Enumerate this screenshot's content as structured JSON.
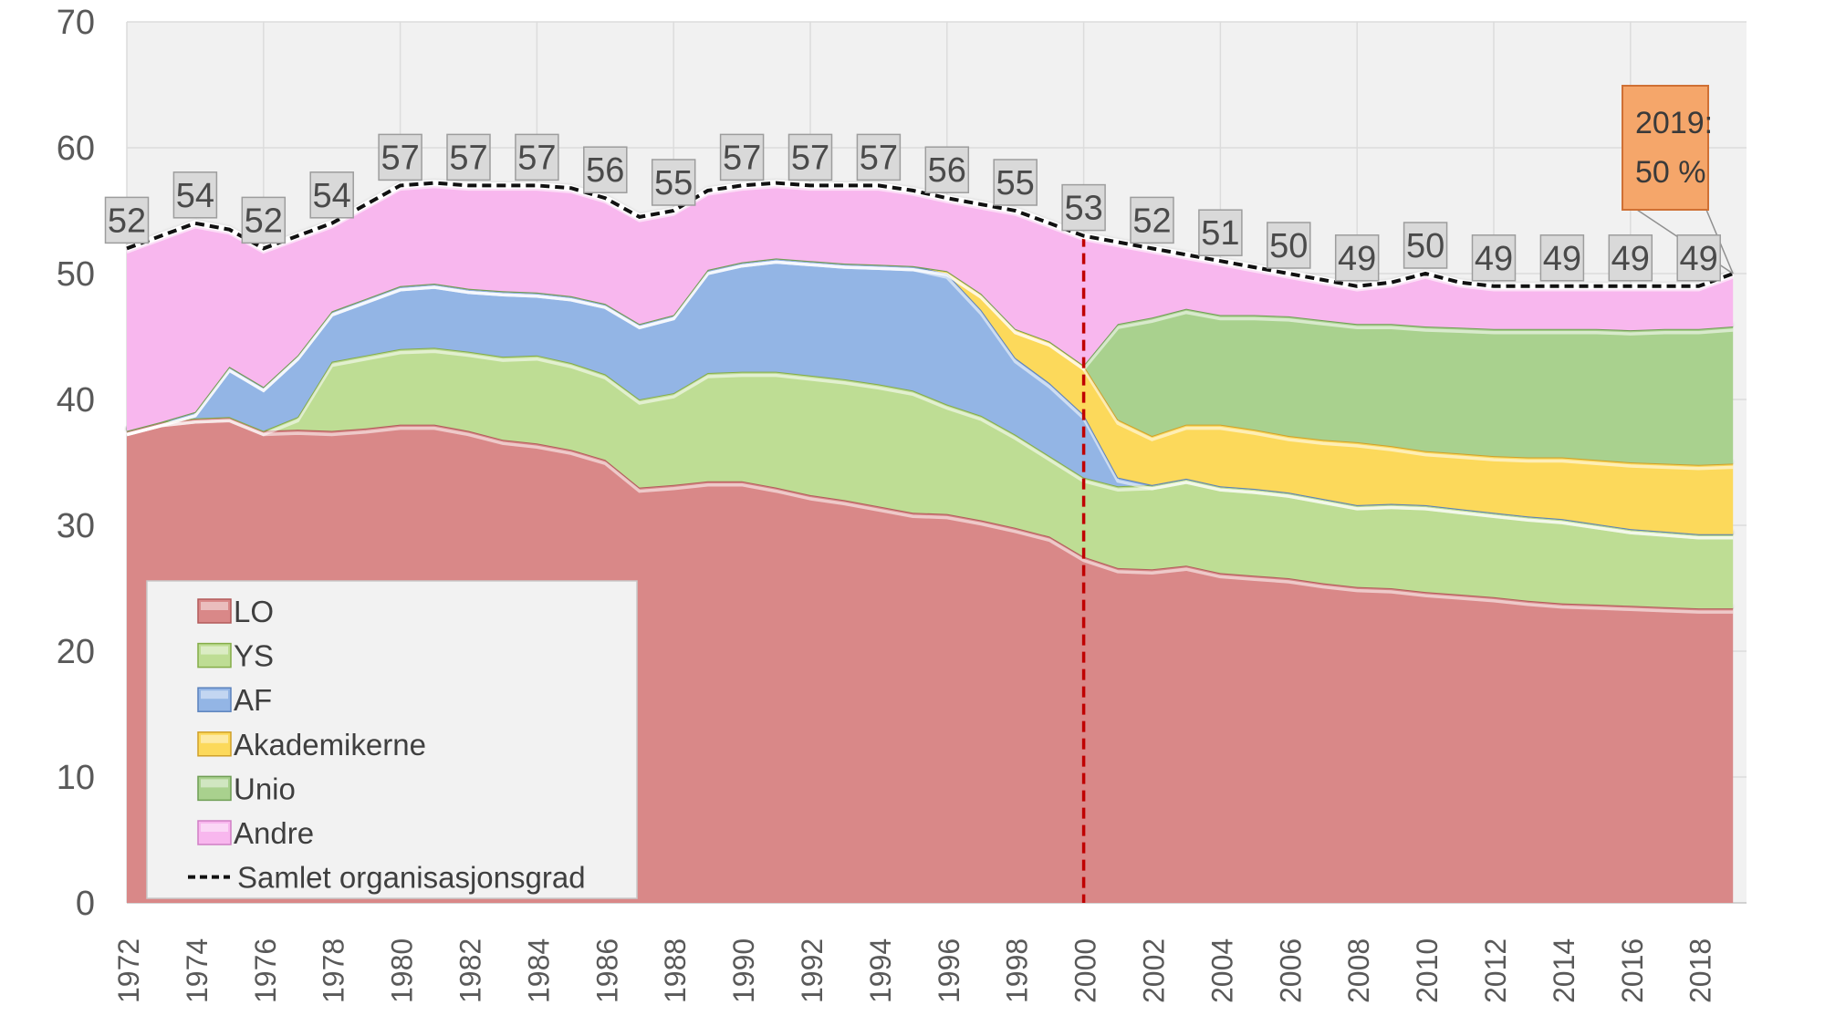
{
  "chart_data": {
    "type": "area",
    "stacked": true,
    "title": "",
    "xlabel": "",
    "ylabel": "",
    "y_axis": {
      "min": 0,
      "max": 70,
      "step": 10,
      "ticks": [
        0,
        10,
        20,
        30,
        40,
        50,
        60,
        70
      ]
    },
    "x_axis": {
      "tick_years": [
        1972,
        1974,
        1976,
        1978,
        1980,
        1982,
        1984,
        1986,
        1988,
        1990,
        1992,
        1994,
        1996,
        1998,
        2000,
        2002,
        2004,
        2006,
        2008,
        2010,
        2012,
        2014,
        2016,
        2018
      ],
      "gridline_every": 4
    },
    "grid": true,
    "legend_position": "bottom-left-inside",
    "colors": {
      "plot_background": "#f1f1f1",
      "gridline": "#dcdcdc",
      "axis_text": "#595959",
      "label_box_fill": "#d9d9d9",
      "label_box_border": "#9d9d9d",
      "label_text": "#4a4a4a",
      "total_line": "#111111",
      "total_line_halo": "#ffffff",
      "reference_line": "#c00000",
      "legend_fill": "#f2f2f2",
      "legend_border": "#c9c9c9",
      "legend_text": "#3f3f3f"
    },
    "years": [
      1972,
      1973,
      1974,
      1975,
      1976,
      1977,
      1978,
      1979,
      1980,
      1981,
      1982,
      1983,
      1984,
      1985,
      1986,
      1987,
      1988,
      1989,
      1990,
      1991,
      1992,
      1993,
      1994,
      1995,
      1996,
      1997,
      1998,
      1999,
      2000,
      2001,
      2002,
      2003,
      2004,
      2005,
      2006,
      2007,
      2008,
      2009,
      2010,
      2011,
      2012,
      2013,
      2014,
      2015,
      2016,
      2017,
      2018,
      2019
    ],
    "series": [
      {
        "name": "LO",
        "fill": "#d98888",
        "edge": "#b25b5b",
        "values": [
          37.5,
          38.2,
          38.5,
          38.6,
          37.5,
          37.6,
          37.5,
          37.7,
          38,
          38,
          37.5,
          36.8,
          36.5,
          36,
          35.2,
          33,
          33.2,
          33.5,
          33.5,
          33,
          32.4,
          32,
          31.5,
          31,
          30.9,
          30.4,
          29.8,
          29.1,
          27.5,
          26.6,
          26.5,
          26.8,
          26.2,
          26,
          25.8,
          25.4,
          25.1,
          25,
          24.7,
          24.5,
          24.3,
          24,
          23.8,
          23.7,
          23.6,
          23.5,
          23.4,
          23.4
        ]
      },
      {
        "name": "YS",
        "fill": "#bedd94",
        "edge": "#84ac48",
        "values": [
          0,
          0,
          0,
          0,
          0,
          1,
          5.5,
          5.8,
          6,
          6.1,
          6.3,
          6.6,
          7,
          6.9,
          6.8,
          7,
          7.3,
          8.6,
          8.7,
          9.2,
          9.5,
          9.6,
          9.7,
          9.7,
          8.7,
          8.3,
          7.4,
          6.4,
          6.3,
          6.5,
          6.7,
          6.9,
          6.9,
          6.9,
          6.8,
          6.7,
          6.5,
          6.7,
          6.9,
          6.8,
          6.7,
          6.7,
          6.7,
          6.4,
          6.1,
          6,
          5.9,
          5.9
        ]
      },
      {
        "name": "AF",
        "fill": "#93b5e5",
        "edge": "#5b82bd",
        "values": [
          0,
          0,
          0.5,
          4,
          3.5,
          4.9,
          4,
          4.5,
          5,
          5.1,
          5,
          5.2,
          5,
          5.3,
          5.6,
          6,
          6.2,
          8.2,
          8.7,
          9,
          9.1,
          9.2,
          9.5,
          9.9,
          10.4,
          8.4,
          6.1,
          5.8,
          5,
          0.7,
          0,
          0,
          0,
          0,
          0,
          0,
          0,
          0,
          0,
          0,
          0,
          0,
          0,
          0,
          0,
          0,
          0,
          0
        ]
      },
      {
        "name": "Akademikerne",
        "fill": "#fcd95b",
        "edge": "#cfa02a",
        "values": [
          0,
          0,
          0,
          0,
          0,
          0,
          0,
          0,
          0,
          0,
          0,
          0,
          0,
          0,
          0,
          0,
          0,
          0,
          0,
          0,
          0,
          0,
          0,
          0,
          0.2,
          1.3,
          2.3,
          3.3,
          3.9,
          4.6,
          3.9,
          4.3,
          4.9,
          4.7,
          4.5,
          4.7,
          5,
          4.6,
          4.3,
          4.4,
          4.5,
          4.7,
          4.9,
          5.1,
          5.3,
          5.4,
          5.5,
          5.6
        ]
      },
      {
        "name": "Unio",
        "fill": "#a9d18e",
        "edge": "#6f9e55",
        "values": [
          0,
          0,
          0,
          0,
          0,
          0,
          0,
          0,
          0,
          0,
          0,
          0,
          0,
          0,
          0,
          0,
          0,
          0,
          0,
          0,
          0,
          0,
          0,
          0,
          0,
          0,
          0,
          0,
          0,
          7.6,
          9.4,
          9.2,
          8.7,
          9.1,
          9.5,
          9.5,
          9.4,
          9.7,
          9.9,
          10,
          10.1,
          10.2,
          10.2,
          10.4,
          10.5,
          10.7,
          10.8,
          10.9
        ]
      },
      {
        "name": "Andre",
        "fill": "#f8b7ee",
        "edge": "#cf7ec4",
        "values": [
          14.5,
          14.8,
          15,
          10.9,
          11,
          9.5,
          7,
          7.5,
          8,
          8,
          8.2,
          8.4,
          8.5,
          8.6,
          8.4,
          8.5,
          8.3,
          6.3,
          6.1,
          6,
          6,
          6.2,
          6.3,
          6,
          5.8,
          7.1,
          9.4,
          9.4,
          10.3,
          6.5,
          5.5,
          4.3,
          4.3,
          3.8,
          3.4,
          3.2,
          3,
          3.3,
          4.2,
          3.6,
          3.4,
          3.4,
          3.4,
          3.4,
          3.5,
          3.4,
          3.4,
          4.2
        ]
      }
    ],
    "total_line": {
      "name": "Samlet organisasjonsgrad",
      "style": "dashed"
    },
    "data_labels": {
      "years": [
        1972,
        1974,
        1976,
        1978,
        1980,
        1982,
        1984,
        1986,
        1988,
        1990,
        1992,
        1994,
        1996,
        1998,
        2000,
        2002,
        2004,
        2006,
        2008,
        2010,
        2012,
        2014,
        2016,
        2018
      ],
      "values": [
        52,
        54,
        52,
        54,
        57,
        57,
        57,
        56,
        55,
        57,
        57,
        57,
        56,
        55,
        53,
        52,
        51,
        50,
        49,
        50,
        49,
        49,
        49,
        49
      ]
    },
    "callout": {
      "line1": "2019:",
      "line2": "50 %",
      "fill": "#f5a66a",
      "border": "#cf7034",
      "text_color": "#3a3a3a",
      "anchor_year": 2019,
      "anchor_value": 50
    },
    "reference_line": {
      "year": 2000,
      "color": "#c00000",
      "style": "dashed"
    },
    "legend": {
      "entries": [
        "LO",
        "YS",
        "AF",
        "Akademikerne",
        "Unio",
        "Andre",
        "Samlet organisasjonsgrad"
      ]
    }
  }
}
